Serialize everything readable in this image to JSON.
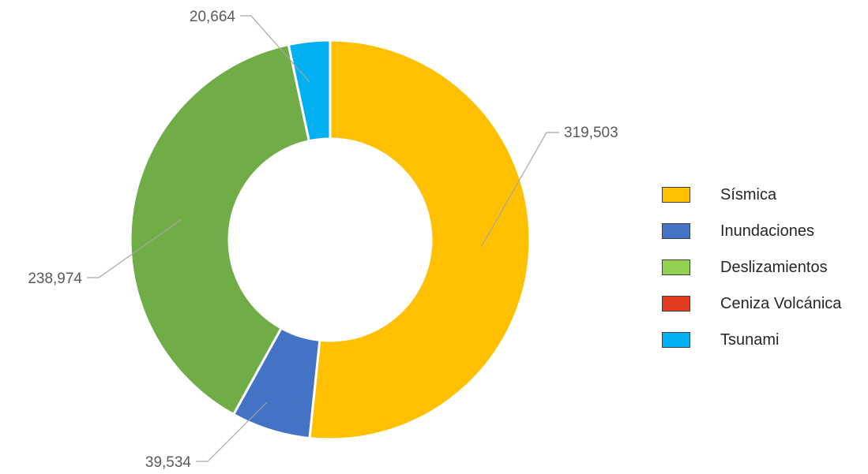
{
  "chart_data": {
    "type": "pie",
    "variant": "donut",
    "categories": [
      "Sísmica",
      "Inundaciones",
      "Deslizamientos",
      "Ceniza Volcánica",
      "Tsunami"
    ],
    "values": [
      319503,
      39534,
      238974,
      0,
      20664
    ],
    "value_labels": [
      "319,503",
      "39,534",
      "238,974",
      "",
      "20,664"
    ],
    "colors": [
      "#FFC000",
      "#4472C4",
      "#70AD47",
      "#E03C1F",
      "#00B0F0"
    ],
    "legend_colors": [
      "#FFC000",
      "#4472C4",
      "#92D050",
      "#E03C1F",
      "#00B0F0"
    ],
    "legend_position": "right",
    "start_angle_deg": 0,
    "direction": "clockwise",
    "title": ""
  }
}
